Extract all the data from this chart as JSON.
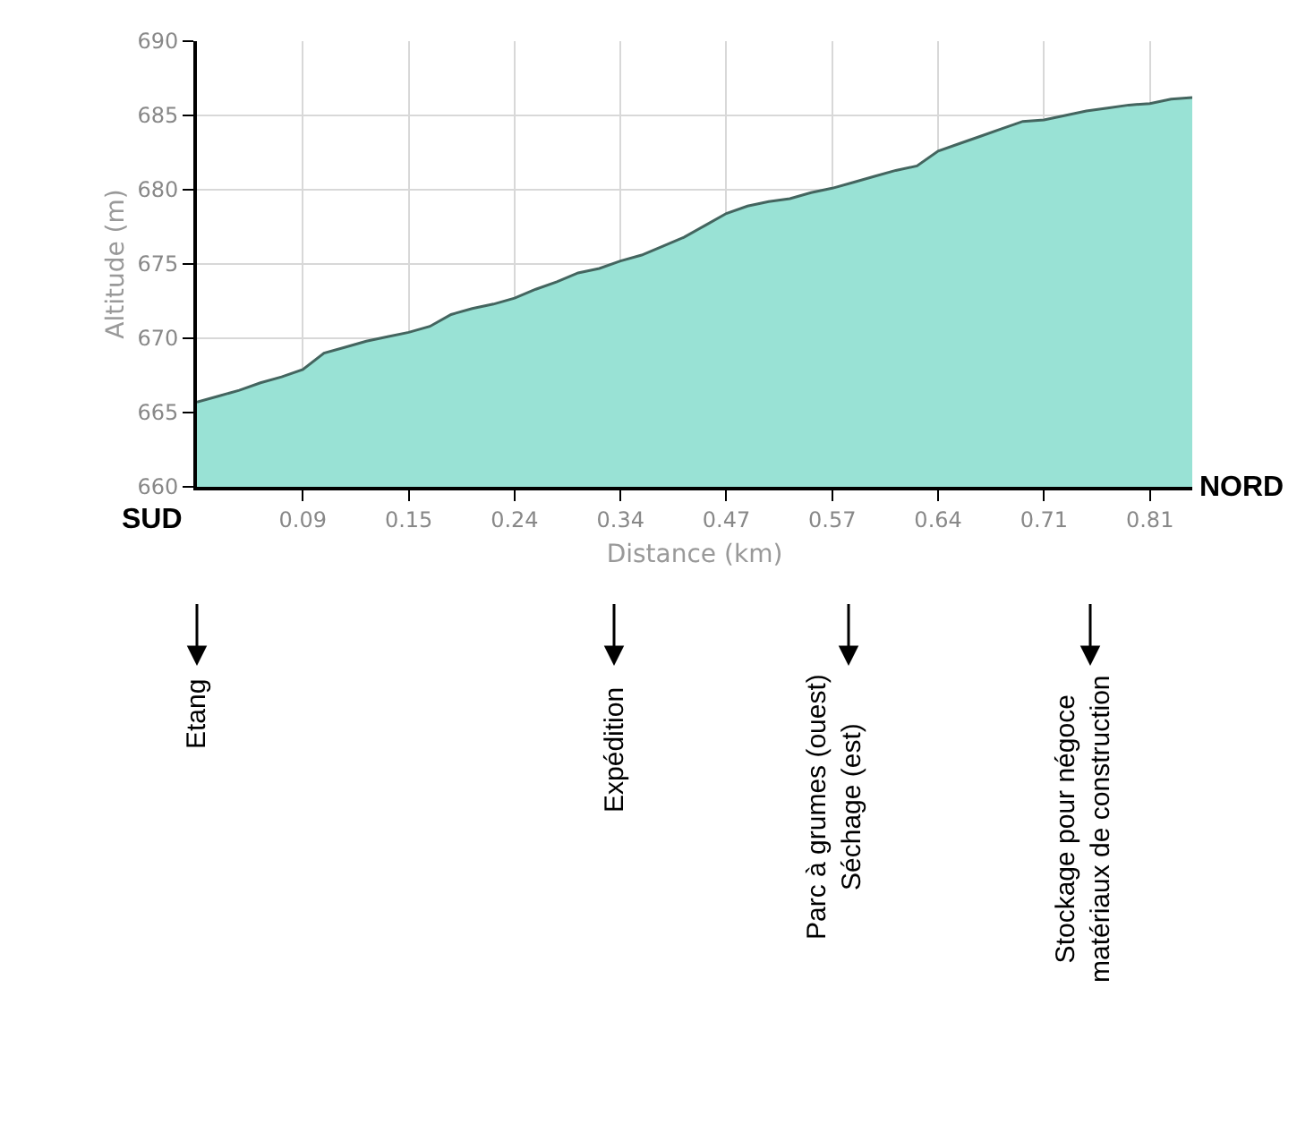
{
  "chart_data": {
    "type": "area",
    "xlabel": "Distance (km)",
    "ylabel": "Altitude (m)",
    "categories": [
      null,
      null,
      null,
      null,
      null,
      "0.09",
      null,
      null,
      null,
      null,
      "0.15",
      null,
      null,
      null,
      null,
      "0.24",
      null,
      null,
      null,
      null,
      "0.34",
      null,
      null,
      null,
      null,
      "0.47",
      null,
      null,
      null,
      null,
      "0.57",
      null,
      null,
      null,
      null,
      "0.64",
      null,
      null,
      null,
      null,
      "0.71",
      null,
      null,
      null,
      null,
      "0.81",
      null,
      null
    ],
    "series": [
      {
        "color": "#99e2d5",
        "values": [
          665.7,
          666.1,
          666.5,
          667.0,
          667.4,
          667.9,
          669.0,
          669.4,
          669.8,
          670.1,
          670.4,
          670.8,
          671.6,
          672.0,
          672.3,
          672.7,
          673.3,
          673.8,
          674.4,
          674.7,
          675.2,
          675.6,
          676.2,
          676.8,
          677.6,
          678.4,
          678.9,
          679.2,
          679.4,
          679.8,
          680.1,
          680.5,
          680.9,
          681.3,
          681.6,
          682.6,
          683.1,
          683.6,
          684.1,
          684.6,
          684.7,
          685.0,
          685.3,
          685.5,
          685.7,
          685.8,
          686.1,
          686.2
        ]
      }
    ],
    "ylim": [
      660,
      690
    ],
    "yticks": [
      660,
      665,
      670,
      675,
      680,
      685,
      690
    ],
    "grid": true,
    "annotations": [
      "SUD",
      "NORD",
      "Etang",
      "Expédition",
      "Parc à grumes (ouest)\nSéchage (est)",
      "Stockage pour négoce\nmatériaux de construction"
    ]
  }
}
